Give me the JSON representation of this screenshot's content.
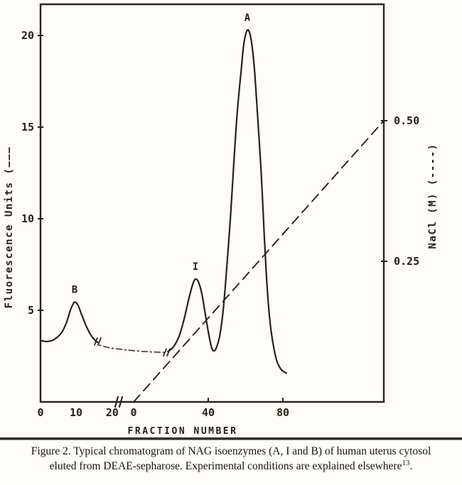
{
  "figure": {
    "caption_line1": "Figure 2. Typical chromatogram of NAG isoenzymes (A, I and B) of human uterus cytosol",
    "caption_line2_pre": "eluted from DEAE-sepharose. Experimental conditions are explained elsewhere",
    "caption_superscript": "13",
    "caption_line2_post": "."
  },
  "colors": {
    "ink": "#26211a",
    "faded_ink": "#433d34",
    "background": "#fefdfa"
  },
  "chart_data": {
    "type": "line",
    "title": "",
    "x_axis": {
      "label": "FRACTION  NUMBER",
      "ticks": [
        {
          "label": "0",
          "xnorm": 0.0,
          "tick": false
        },
        {
          "label": "10",
          "xnorm": 0.1035,
          "tick": false
        },
        {
          "label": "20",
          "xnorm": 0.209,
          "tick": false
        },
        {
          "label": "0",
          "xnorm": 0.2712,
          "tick": false
        },
        {
          "label": "40",
          "xnorm": 0.4886,
          "tick": true
        },
        {
          "label": "80",
          "xnorm": 0.706,
          "tick": true
        }
      ],
      "axis_break_xnorm": 0.2215,
      "note": "scale break after fraction 20; fraction numbering restarts at 0 where the NaCl gradient begins"
    },
    "y_left": {
      "label": "Fluorescence Units (———",
      "ticks": [
        {
          "label": "5",
          "value": 5
        },
        {
          "label": "10",
          "value": 10
        },
        {
          "label": "15",
          "value": 15
        },
        {
          "label": "20",
          "value": 20
        }
      ],
      "range": [
        0,
        21.7
      ]
    },
    "y_right": {
      "label": "NaCl (M) (----)",
      "ticks": [
        {
          "label": "0.25",
          "value": 0.25
        },
        {
          "label": "0.50",
          "value": 0.5
        }
      ],
      "range": [
        0,
        0.7
      ]
    },
    "series": [
      {
        "name": "fluorescence",
        "axis": "left",
        "segments": [
          {
            "style": "solid",
            "points": [
              [
                0.0,
                3.35
              ],
              [
                0.019,
                3.3
              ],
              [
                0.039,
                3.4
              ],
              [
                0.06,
                3.75
              ],
              [
                0.075,
                4.3
              ],
              [
                0.087,
                5.0
              ],
              [
                0.095,
                5.35
              ],
              [
                0.101,
                5.45
              ],
              [
                0.11,
                5.25
              ],
              [
                0.12,
                4.75
              ],
              [
                0.133,
                4.15
              ],
              [
                0.145,
                3.7
              ],
              [
                0.157,
                3.4
              ],
              [
                0.166,
                3.25
              ]
            ]
          },
          {
            "style": "dash-dot",
            "points": [
              [
                0.172,
                3.1
              ],
              [
                0.203,
                2.95
              ],
              [
                0.244,
                2.85
              ],
              [
                0.296,
                2.76
              ],
              [
                0.337,
                2.72
              ],
              [
                0.362,
                2.7
              ]
            ]
          },
          {
            "style": "solid",
            "points": [
              [
                0.371,
                2.75
              ],
              [
                0.387,
                3.0
              ],
              [
                0.404,
                3.6
              ],
              [
                0.418,
                4.5
              ],
              [
                0.433,
                5.7
              ],
              [
                0.443,
                6.4
              ],
              [
                0.451,
                6.7
              ],
              [
                0.46,
                6.55
              ],
              [
                0.47,
                5.9
              ],
              [
                0.48,
                4.8
              ],
              [
                0.489,
                3.8
              ],
              [
                0.497,
                3.05
              ],
              [
                0.503,
                2.8
              ],
              [
                0.511,
                2.9
              ],
              [
                0.522,
                3.6
              ],
              [
                0.532,
                5.0
              ],
              [
                0.542,
                7.2
              ],
              [
                0.553,
                10.0
              ],
              [
                0.563,
                13.0
              ],
              [
                0.573,
                15.8
              ],
              [
                0.584,
                18.0
              ],
              [
                0.592,
                19.5
              ],
              [
                0.6,
                20.2
              ],
              [
                0.607,
                20.25
              ],
              [
                0.615,
                19.6
              ],
              [
                0.623,
                18.2
              ],
              [
                0.631,
                16.0
              ],
              [
                0.642,
                12.8
              ],
              [
                0.652,
                9.0
              ],
              [
                0.66,
                6.3
              ],
              [
                0.669,
                4.3
              ],
              [
                0.679,
                3.0
              ],
              [
                0.689,
                2.2
              ],
              [
                0.702,
                1.75
              ],
              [
                0.716,
                1.58
              ]
            ]
          }
        ]
      },
      {
        "name": "nacl-gradient",
        "axis": "right",
        "segments": [
          {
            "style": "dashed",
            "points": [
              [
                0.2712,
                0.0
              ],
              [
                1.0,
                0.5
              ]
            ]
          }
        ]
      }
    ],
    "breaks": [
      {
        "on": "curve",
        "xnorm": 0.1614,
        "value": 3.3
      },
      {
        "on": "curve",
        "xnorm": 0.3623,
        "value": 2.7
      },
      {
        "on": "axis",
        "xnorm": 0.2215,
        "value": 0
      }
    ],
    "peaks": [
      {
        "label": "B",
        "xnorm": 0.0994,
        "value": 5.45
      },
      {
        "label": "I",
        "xnorm": 0.4513,
        "value": 6.7
      },
      {
        "label": "A",
        "xnorm": 0.6025,
        "value": 20.3
      }
    ]
  }
}
